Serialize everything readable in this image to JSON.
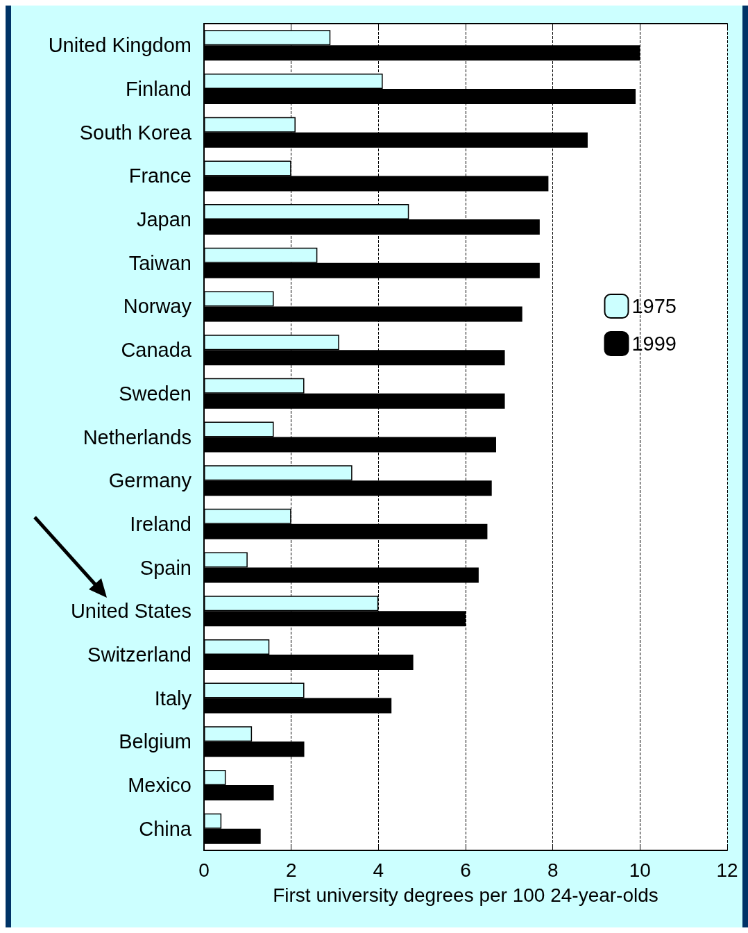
{
  "chart_data": {
    "type": "bar",
    "orientation": "horizontal",
    "xlabel": "First university degrees per 100 24-year-olds",
    "categories": [
      "United Kingdom",
      "Finland",
      "South Korea",
      "France",
      "Japan",
      "Taiwan",
      "Norway",
      "Canada",
      "Sweden",
      "Netherlands",
      "Germany",
      "Ireland",
      "Spain",
      "United States",
      "Switzerland",
      "Italy",
      "Belgium",
      "Mexico",
      "China"
    ],
    "series": [
      {
        "name": "1975",
        "color": "#ccffff",
        "values": [
          2.9,
          4.1,
          2.1,
          2.0,
          4.7,
          2.6,
          1.6,
          3.1,
          2.3,
          1.6,
          3.4,
          2.0,
          1.0,
          4.0,
          1.5,
          2.3,
          1.1,
          0.5,
          0.4
        ]
      },
      {
        "name": "1999",
        "color": "#000000",
        "values": [
          10.0,
          9.9,
          8.8,
          7.9,
          7.7,
          7.7,
          7.3,
          6.9,
          6.9,
          6.7,
          6.6,
          6.5,
          6.3,
          6.0,
          4.8,
          4.3,
          2.3,
          1.6,
          1.3
        ]
      }
    ],
    "xlim": [
      0,
      12
    ],
    "xticks": [
      0,
      2,
      4,
      6,
      8,
      10,
      12
    ],
    "grid": "x",
    "legend": "right"
  }
}
